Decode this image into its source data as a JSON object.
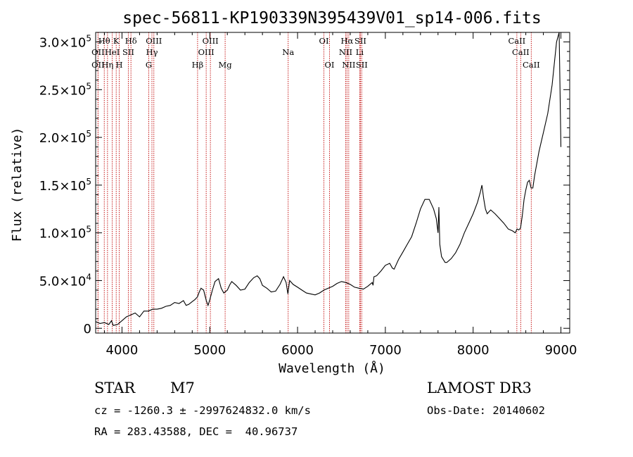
{
  "chart_data": {
    "type": "line",
    "title": "spec-56811-KP190339N395439V01_sp14-006.fits",
    "xlabel": "Wavelength (Å)",
    "ylabel": "Flux (relative)",
    "xlim": [
      3700,
      9100
    ],
    "ylim": [
      -5000,
      310000
    ],
    "xticks": [
      4000,
      5000,
      6000,
      7000,
      8000,
      9000
    ],
    "xtick_labels": [
      "4000",
      "5000",
      "6000",
      "7000",
      "8000",
      "9000"
    ],
    "yticks": [
      0,
      50000,
      100000,
      150000,
      200000,
      250000,
      300000
    ],
    "ytick_labels": [
      {
        "mantissa": "0",
        "exp": ""
      },
      {
        "mantissa": "5.0×10",
        "exp": "4"
      },
      {
        "mantissa": "1.0×10",
        "exp": "5"
      },
      {
        "mantissa": "1.5×10",
        "exp": "5"
      },
      {
        "mantissa": "2.0×10",
        "exp": "5"
      },
      {
        "mantissa": "2.5×10",
        "exp": "5"
      },
      {
        "mantissa": "3.0×10",
        "exp": "5"
      }
    ],
    "line_lists": [
      {
        "name": "OII",
        "wavelength": 3727,
        "row": 1
      },
      {
        "name": "OII",
        "wavelength": 3727,
        "row": 2
      },
      {
        "name": "Hθ",
        "wavelength": 3798,
        "row": 0
      },
      {
        "name": "Hη",
        "wavelength": 3835,
        "row": 2
      },
      {
        "name": "HeI",
        "wavelength": 3889,
        "row": 1
      },
      {
        "name": "K",
        "wavelength": 3934,
        "row": 0
      },
      {
        "name": "H",
        "wavelength": 3969,
        "row": 2
      },
      {
        "name": "SII",
        "wavelength": 4072,
        "row": 1
      },
      {
        "name": "Hδ",
        "wavelength": 4102,
        "row": 0
      },
      {
        "name": "G",
        "wavelength": 4305,
        "row": 2
      },
      {
        "name": "Hγ",
        "wavelength": 4341,
        "row": 1
      },
      {
        "name": "OIII",
        "wavelength": 4363,
        "row": 0
      },
      {
        "name": "Hβ",
        "wavelength": 4861,
        "row": 2
      },
      {
        "name": "OIII",
        "wavelength": 4959,
        "row": 1
      },
      {
        "name": "OIII",
        "wavelength": 5007,
        "row": 0
      },
      {
        "name": "Mg",
        "wavelength": 5175,
        "row": 2
      },
      {
        "name": "Na",
        "wavelength": 5893,
        "row": 1
      },
      {
        "name": "OI",
        "wavelength": 6300,
        "row": 0
      },
      {
        "name": "OI",
        "wavelength": 6364,
        "row": 2
      },
      {
        "name": "NII",
        "wavelength": 6548,
        "row": 1
      },
      {
        "name": "Hα",
        "wavelength": 6563,
        "row": 0
      },
      {
        "name": "NII",
        "wavelength": 6583,
        "row": 2
      },
      {
        "name": "Li",
        "wavelength": 6708,
        "row": 1
      },
      {
        "name": "SII",
        "wavelength": 6716,
        "row": 0
      },
      {
        "name": "SII",
        "wavelength": 6731,
        "row": 2
      },
      {
        "name": "CaII",
        "wavelength": 8498,
        "row": 0
      },
      {
        "name": "CaII",
        "wavelength": 8542,
        "row": 1
      },
      {
        "name": "CaII",
        "wavelength": 8662,
        "row": 2
      }
    ],
    "series": [
      {
        "name": "spectrum",
        "color": "#000000",
        "x": [
          3700,
          3750,
          3800,
          3850,
          3880,
          3900,
          3950,
          4000,
          4050,
          4100,
          4150,
          4200,
          4250,
          4300,
          4350,
          4400,
          4450,
          4500,
          4550,
          4600,
          4650,
          4700,
          4730,
          4760,
          4800,
          4830,
          4860,
          4880,
          4900,
          4930,
          4960,
          4980,
          5000,
          5030,
          5060,
          5100,
          5130,
          5160,
          5200,
          5230,
          5250,
          5300,
          5350,
          5400,
          5450,
          5500,
          5540,
          5570,
          5600,
          5650,
          5700,
          5750,
          5800,
          5840,
          5870,
          5890,
          5910,
          5950,
          6000,
          6050,
          6100,
          6150,
          6200,
          6250,
          6300,
          6350,
          6400,
          6450,
          6500,
          6550,
          6600,
          6650,
          6700,
          6750,
          6800,
          6850,
          6860,
          6870,
          6900,
          6950,
          7000,
          7050,
          7080,
          7100,
          7150,
          7200,
          7250,
          7300,
          7350,
          7400,
          7450,
          7500,
          7550,
          7580,
          7600,
          7610,
          7620,
          7640,
          7660,
          7680,
          7700,
          7750,
          7800,
          7850,
          7900,
          7950,
          8000,
          8050,
          8080,
          8100,
          8120,
          8140,
          8160,
          8180,
          8200,
          8250,
          8300,
          8350,
          8400,
          8450,
          8480,
          8500,
          8520,
          8540,
          8560,
          8580,
          8600,
          8620,
          8640,
          8660,
          8680,
          8700,
          8750,
          8800,
          8850,
          8900,
          8950,
          8980,
          9000
        ],
        "y": [
          7000,
          5000,
          6000,
          4000,
          8000,
          3000,
          4000,
          8000,
          12000,
          14000,
          16000,
          12000,
          18000,
          18000,
          20000,
          20000,
          21000,
          23000,
          24000,
          27000,
          26000,
          29000,
          24000,
          25000,
          28000,
          30000,
          33000,
          38000,
          42000,
          40000,
          29000,
          24000,
          30000,
          40000,
          49000,
          52000,
          42000,
          37000,
          40000,
          46000,
          49000,
          45000,
          40000,
          41000,
          48000,
          53000,
          55000,
          52000,
          45000,
          42000,
          38000,
          39000,
          46000,
          54000,
          48000,
          36000,
          50000,
          46000,
          43000,
          40000,
          37000,
          36000,
          35000,
          37000,
          40000,
          42000,
          44000,
          47000,
          49000,
          48000,
          46000,
          43000,
          42000,
          41000,
          44000,
          48000,
          45000,
          54000,
          55000,
          60000,
          66000,
          68000,
          63000,
          62000,
          72000,
          80000,
          88000,
          96000,
          110000,
          125000,
          135000,
          135000,
          125000,
          115000,
          100000,
          127000,
          88000,
          75000,
          72000,
          69000,
          69000,
          73000,
          79000,
          88000,
          100000,
          110000,
          120000,
          132000,
          142000,
          150000,
          136000,
          125000,
          120000,
          122000,
          124000,
          120000,
          115000,
          110000,
          104000,
          102000,
          100000,
          104000,
          103000,
          105000,
          118000,
          135000,
          145000,
          153000,
          155000,
          147000,
          147000,
          160000,
          185000,
          205000,
          225000,
          255000,
          300000,
          310000,
          190000
        ]
      }
    ]
  },
  "info": {
    "object_class": "STAR",
    "subclass": "M7",
    "survey": "LAMOST DR3",
    "cz_line": "cz = -1260.3 ± -2997624832.0 km/s",
    "obs_date": "Obs-Date: 20140602",
    "coords_line": "RA = 283.43588, DEC =  40.96737"
  }
}
